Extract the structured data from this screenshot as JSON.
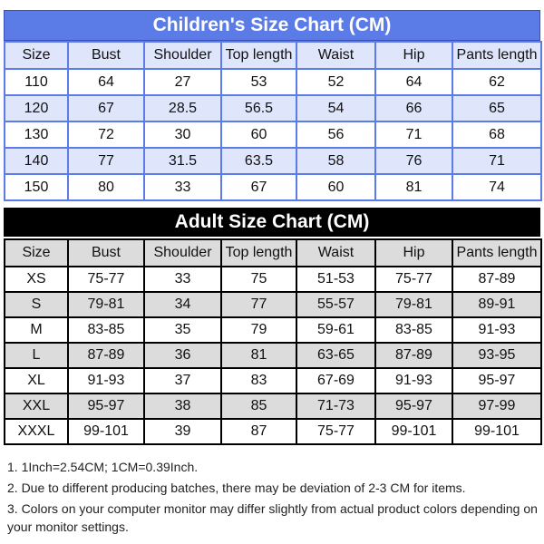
{
  "children": {
    "title": "Children's Size Chart (CM)",
    "headers": [
      "Size",
      "Bust",
      "Shoulder",
      "Top length",
      "Waist",
      "Hip",
      "Pants length"
    ],
    "rows": [
      [
        "110",
        "64",
        "27",
        "53",
        "52",
        "64",
        "62"
      ],
      [
        "120",
        "67",
        "28.5",
        "56.5",
        "54",
        "66",
        "65"
      ],
      [
        "130",
        "72",
        "30",
        "60",
        "56",
        "71",
        "68"
      ],
      [
        "140",
        "77",
        "31.5",
        "63.5",
        "58",
        "76",
        "71"
      ],
      [
        "150",
        "80",
        "33",
        "67",
        "60",
        "81",
        "74"
      ]
    ],
    "colors": {
      "accent": "#5b7be6",
      "row_tint": "#dfe6fb"
    }
  },
  "adult": {
    "title": "Adult Size Chart (CM)",
    "headers": [
      "Size",
      "Bust",
      "Shoulder",
      "Top length",
      "Waist",
      "Hip",
      "Pants length"
    ],
    "rows": [
      [
        "XS",
        "75-77",
        "33",
        "75",
        "51-53",
        "75-77",
        "87-89"
      ],
      [
        "S",
        "79-81",
        "34",
        "77",
        "55-57",
        "79-81",
        "89-91"
      ],
      [
        "M",
        "83-85",
        "35",
        "79",
        "59-61",
        "83-85",
        "91-93"
      ],
      [
        "L",
        "87-89",
        "36",
        "81",
        "63-65",
        "87-89",
        "93-95"
      ],
      [
        "XL",
        "91-93",
        "37",
        "83",
        "67-69",
        "91-93",
        "95-97"
      ],
      [
        "XXL",
        "95-97",
        "38",
        "85",
        "71-73",
        "95-97",
        "97-99"
      ],
      [
        "XXXL",
        "99-101",
        "39",
        "87",
        "75-77",
        "99-101",
        "99-101"
      ]
    ],
    "colors": {
      "accent": "#000000",
      "row_tint": "#dcdcdc"
    }
  },
  "notes": [
    "1. 1Inch=2.54CM; 1CM=0.39Inch.",
    "2. Due to different producing batches, there may be deviation of 2-3 CM for items.",
    "3. Colors on your computer monitor may differ slightly from actual product colors depending on your monitor settings."
  ]
}
